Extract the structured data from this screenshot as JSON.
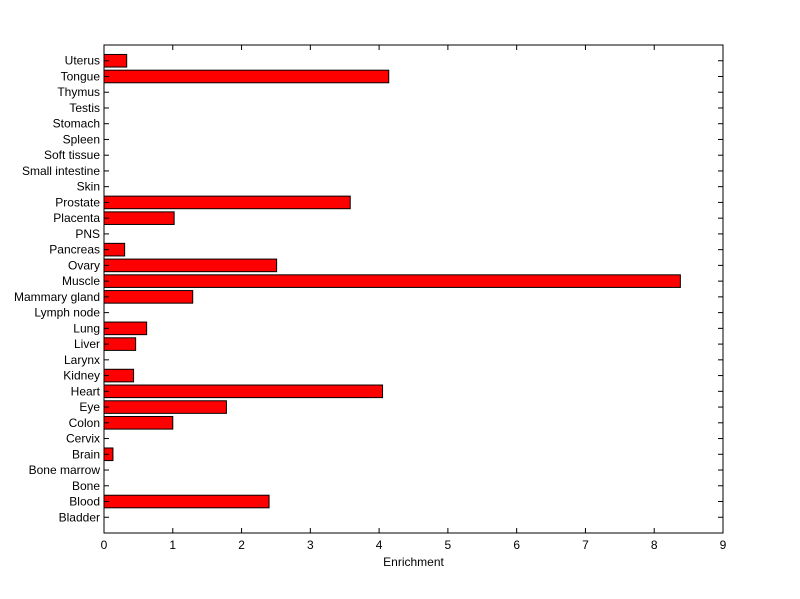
{
  "chart_data": {
    "type": "bar",
    "orientation": "horizontal",
    "xlabel": "Enrichment",
    "ylabel": "",
    "xlim": [
      0,
      9
    ],
    "xticks": [
      0,
      1,
      2,
      3,
      4,
      5,
      6,
      7,
      8,
      9
    ],
    "grid": false,
    "bar_color": "#ff0000",
    "edge_color": "#000000",
    "categories": [
      "Bladder",
      "Blood",
      "Bone",
      "Bone marrow",
      "Brain",
      "Cervix",
      "Colon",
      "Eye",
      "Heart",
      "Kidney",
      "Larynx",
      "Liver",
      "Lung",
      "Lymph node",
      "Mammary gland",
      "Muscle",
      "Ovary",
      "Pancreas",
      "PNS",
      "Placenta",
      "Prostate",
      "Skin",
      "Small intestine",
      "Soft tissue",
      "Spleen",
      "Stomach",
      "Testis",
      "Thymus",
      "Tongue",
      "Uterus"
    ],
    "values": [
      0,
      2.4,
      0,
      0,
      0.13,
      0,
      1.0,
      1.78,
      4.05,
      0.43,
      0,
      0.46,
      0.62,
      0,
      1.29,
      8.38,
      2.51,
      0.3,
      0,
      1.02,
      3.58,
      0,
      0,
      0,
      0,
      0,
      0,
      0,
      4.14,
      0.33
    ]
  }
}
